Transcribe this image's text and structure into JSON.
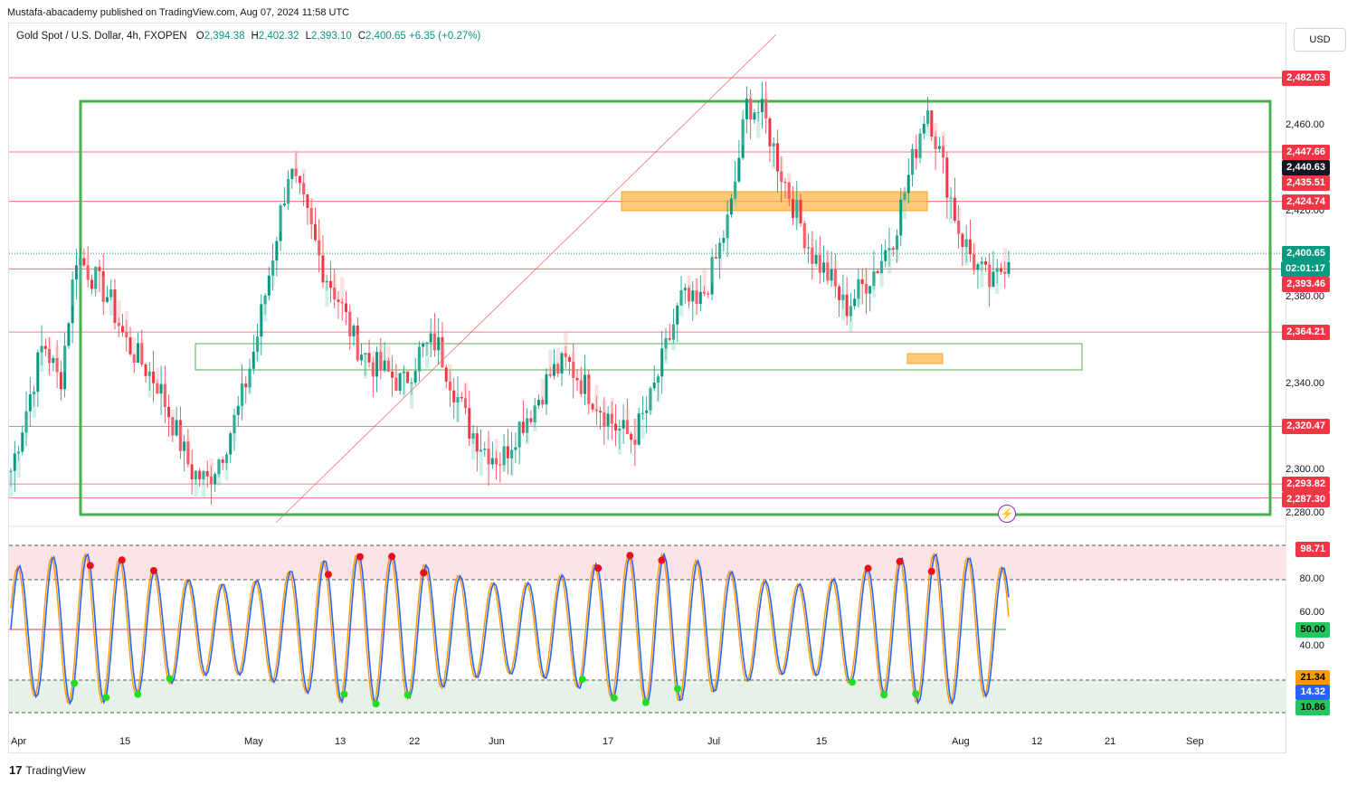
{
  "header": {
    "published": "Mustafa-abacademy published on TradingView.com, Aug 07, 2024 11:58 UTC",
    "symbol": "Gold Spot / U.S. Dollar, 4h, FXOPEN",
    "ohlc": [
      {
        "label": "O",
        "value": "2,394.38"
      },
      {
        "label": "H",
        "value": "2,402.32"
      },
      {
        "label": "L",
        "value": "2,393.10"
      },
      {
        "label": "C",
        "value": "2,400.65"
      }
    ],
    "change": "+6.35 (+0.27%)",
    "currency_button": "USD"
  },
  "price_axis": {
    "ticks": [
      "2,460.00",
      "2,420.00",
      "2,380.00",
      "2,340.00",
      "2,300.00",
      "2,280.00"
    ],
    "tags": [
      {
        "text": "2,482.03",
        "color": "#f23645",
        "price": 2482.03
      },
      {
        "text": "2,447.66",
        "color": "#f23645",
        "price": 2447.66
      },
      {
        "text": "2,440.63",
        "color": "#131722",
        "price": 2440.63
      },
      {
        "text": "2,435.51",
        "color": "#f23645",
        "price": 2435.51
      },
      {
        "text": "2,424.74",
        "color": "#f23645",
        "price": 2424.74
      },
      {
        "text": "2,400.65",
        "color": "#089981",
        "price": 2400.65
      },
      {
        "text": "02:01:17",
        "color": "#089981",
        "price": 2400.65
      },
      {
        "text": "2,393.46",
        "color": "#f23645",
        "price": 2393.46
      },
      {
        "text": "2,364.21",
        "color": "#f23645",
        "price": 2364.21
      },
      {
        "text": "2,320.47",
        "color": "#f23645",
        "price": 2320.47
      },
      {
        "text": "2,293.82",
        "color": "#f23645",
        "price": 2293.82
      },
      {
        "text": "2,287.30",
        "color": "#f23645",
        "price": 2287.3
      }
    ],
    "horizontal_levels": [
      2482.03,
      2447.66,
      2424.74,
      2393.46,
      2364.21,
      2320.47,
      2293.82,
      2287.3
    ]
  },
  "oscillator_axis": {
    "ticks": [
      "80.00",
      "60.00",
      "40.00"
    ],
    "tags": [
      {
        "text": "98.71",
        "color": "#f23645"
      },
      {
        "text": "50.00",
        "color": "#22c55e"
      },
      {
        "text": "21.34",
        "color": "#f59e0b"
      },
      {
        "text": "14.32",
        "color": "#2962ff"
      },
      {
        "text": "10.86",
        "color": "#22c55e"
      }
    ]
  },
  "time_axis": [
    "Apr",
    "15",
    "May",
    "13",
    "22",
    "Jun",
    "17",
    "Jul",
    "15",
    "Aug",
    "12",
    "21",
    "Sep"
  ],
  "branding": {
    "logo_text": "TradingView",
    "logo_mark": "17"
  },
  "colors": {
    "up": "#089981",
    "down": "#f23645",
    "box_green": "#4caf50",
    "zone_orange": "#ffb74d",
    "stoch_k": "#2962ff",
    "stoch_d": "#ff9800"
  },
  "chart_data": {
    "type": "line",
    "series": [
      {
        "values": [
          2300,
          2330,
          2360,
          2340,
          2400,
          2390,
          2380,
          2360,
          2350,
          2340,
          2320,
          2300,
          2295,
          2310,
          2330,
          2360,
          2400,
          2440,
          2420,
          2395,
          2380,
          2360,
          2350,
          2345,
          2340,
          2355,
          2360,
          2340,
          2320,
          2310,
          2305,
          2320,
          2330,
          2345,
          2350,
          2340,
          2330,
          2320,
          2315,
          2330,
          2355,
          2380,
          2375,
          2395,
          2420,
          2470,
          2465,
          2440,
          2420,
          2400,
          2390,
          2375,
          2385,
          2395,
          2410,
          2440,
          2470,
          2440,
          2410,
          2395,
          2385,
          2400.65
        ]
      }
    ],
    "ylim": [
      2275,
      2495
    ]
  }
}
